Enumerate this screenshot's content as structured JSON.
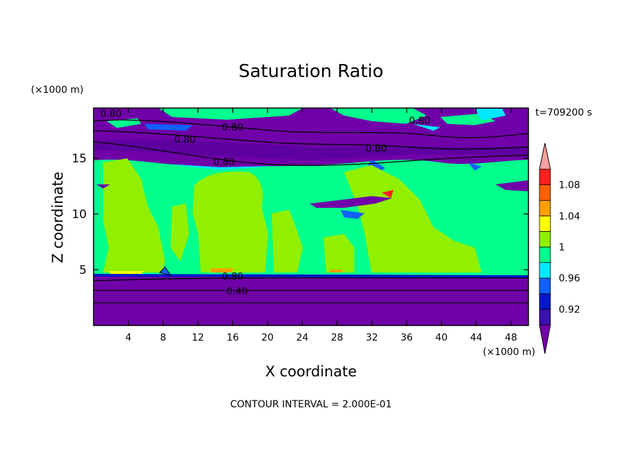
{
  "chart_data": {
    "type": "filled-contour",
    "title": "Saturation Ratio",
    "xlabel": "X coordinate",
    "ylabel": "Z coordinate",
    "x_unit": "(×1000 m)",
    "y_unit": "(×1000 m)",
    "time_label": "t=709200 s",
    "footer": "CONTOUR INTERVAL = 2.000E-01",
    "xlim": [
      0,
      50
    ],
    "ylim": [
      0,
      19.5
    ],
    "x_ticks": [
      4,
      8,
      12,
      16,
      20,
      24,
      28,
      32,
      36,
      40,
      44,
      48
    ],
    "y_ticks": [
      5,
      10,
      15
    ],
    "contour_labels": [
      {
        "text": "0.80",
        "x": 2.0,
        "z": 19.0
      },
      {
        "text": "0.80",
        "x": 16.0,
        "z": 17.8
      },
      {
        "text": "0.80",
        "x": 37.5,
        "z": 18.4
      },
      {
        "text": "0.80",
        "x": 10.5,
        "z": 16.7
      },
      {
        "text": "0.80",
        "x": 32.5,
        "z": 15.9
      },
      {
        "text": "0.80",
        "x": 15.0,
        "z": 14.7
      },
      {
        "text": "0.80",
        "x": 16.0,
        "z": 4.4
      },
      {
        "text": "0.40",
        "x": 16.5,
        "z": 3.1
      }
    ],
    "colorbar": {
      "levels": [
        0.92,
        0.94,
        0.96,
        0.98,
        1.0,
        1.02,
        1.04,
        1.06,
        1.08,
        1.1
      ],
      "labels": [
        "0.92",
        "0.96",
        "1",
        "1.04",
        "1.08"
      ],
      "label_values": [
        0.92,
        0.96,
        1.0,
        1.04,
        1.08
      ],
      "colors": [
        "#7000a8",
        "#3a10b0",
        "#0018c8",
        "#1060ff",
        "#00e8ff",
        "#00ff8c",
        "#90f000",
        "#ffff00",
        "#ffa000",
        "#ff6000",
        "#ff2020",
        "#ffa0a0"
      ]
    }
  }
}
